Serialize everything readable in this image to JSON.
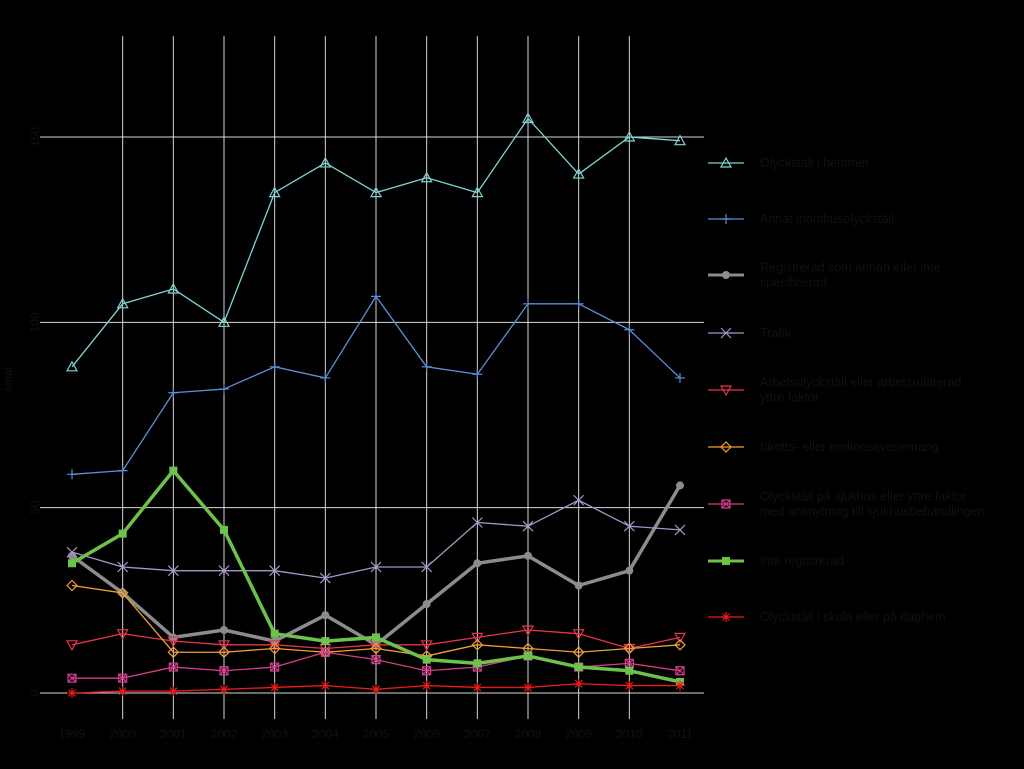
{
  "chart_data": {
    "type": "line",
    "title": "",
    "xlabel": "",
    "ylabel": "Antal",
    "x": [
      "1999",
      "2000",
      "2001",
      "2002",
      "2003",
      "2004",
      "2005",
      "2006",
      "2007",
      "2008",
      "2009",
      "2010",
      "2011"
    ],
    "y_ticks": [
      0,
      50,
      100,
      150
    ],
    "ylim": [
      0,
      160
    ],
    "grid": true,
    "legend_position": "right",
    "colors": {
      "background": "#000000",
      "grid": "#d9d9d9",
      "tick_text": "#111111"
    },
    "series": [
      {
        "name": "Olyckställ i hemmet",
        "color": "#7fd4d4",
        "marker": "triangle",
        "width": 1.3,
        "values": [
          88,
          105,
          109,
          100,
          135,
          143,
          135,
          139,
          135,
          155,
          140,
          150,
          149
        ]
      },
      {
        "name": "Annat inomhusolyckställ",
        "color": "#5b8fd6",
        "marker": "plus",
        "width": 1.3,
        "values": [
          59,
          60,
          81,
          82,
          88,
          85,
          107,
          88,
          86,
          105,
          105,
          98,
          85
        ]
      },
      {
        "name": "Registrerad som annan eller inte specificerad",
        "color": "#8c8c8c",
        "marker": "circle",
        "width": 3.5,
        "values": [
          37,
          27,
          15,
          17,
          14,
          21,
          13,
          24,
          35,
          37,
          29,
          33,
          56
        ]
      },
      {
        "name": "Trafik",
        "color": "#a894c8",
        "marker": "x",
        "width": 1.3,
        "values": [
          38,
          34,
          33,
          33,
          33,
          31,
          34,
          34,
          46,
          45,
          52,
          45,
          44
        ]
      },
      {
        "name": "Arbetsolyckställ eller arbetsrelaterad yttre faktor",
        "color": "#e8334a",
        "marker": "triangle-down",
        "width": 1.3,
        "values": [
          13,
          16,
          14,
          13,
          13,
          12,
          13,
          13,
          15,
          17,
          16,
          12,
          15
        ]
      },
      {
        "name": "Idrotts- eller motionsevenemang",
        "color": "#f0a030",
        "marker": "diamond",
        "width": 1.3,
        "values": [
          29,
          27,
          11,
          11,
          12,
          11,
          12,
          10,
          13,
          12,
          11,
          12,
          13
        ]
      },
      {
        "name": "Olyckställ på sjukhus eller yttre faktor med anknytning till sjukhusbehandlingen",
        "color": "#d63c8c",
        "marker": "square-x",
        "width": 1.3,
        "values": [
          4,
          4,
          7,
          6,
          7,
          11,
          9,
          6,
          7,
          10,
          7,
          8,
          6
        ]
      },
      {
        "name": "Inte registrerad",
        "color": "#6cc24a",
        "marker": "square",
        "width": 3.5,
        "values": [
          35,
          43,
          60,
          44,
          16,
          14,
          15,
          9,
          8,
          10,
          7,
          6,
          3
        ]
      },
      {
        "name": "Olyckställ i skola eller på daghem",
        "color": "#e81a1a",
        "marker": "star",
        "width": 1.3,
        "values": [
          0,
          0.5,
          0.5,
          1,
          1.5,
          2,
          1,
          2,
          1.5,
          1.5,
          2.5,
          2,
          2
        ]
      }
    ]
  }
}
